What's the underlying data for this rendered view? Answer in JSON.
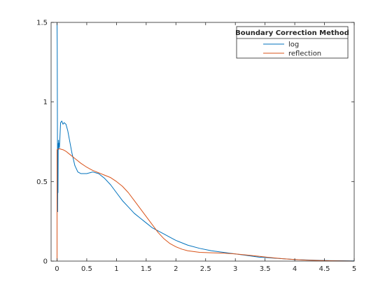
{
  "chart_data": {
    "type": "line",
    "title": "",
    "xlabel": "",
    "ylabel": "",
    "xlim": [
      -0.1,
      5
    ],
    "ylim": [
      0,
      1.5
    ],
    "xticks": [
      0,
      0.5,
      1,
      1.5,
      2,
      2.5,
      3,
      3.5,
      4,
      4.5,
      5
    ],
    "xtick_labels": [
      "0",
      "0.5",
      "1",
      "1.5",
      "2",
      "2.5",
      "3",
      "3.5",
      "4",
      "4.5",
      "5"
    ],
    "yticks": [
      0,
      0.5,
      1,
      1.5
    ],
    "ytick_labels": [
      "0",
      "0.5",
      "1",
      "1.5"
    ],
    "grid": false,
    "legend": {
      "title": "Boundary Correction Method",
      "location": "top-right"
    },
    "series": [
      {
        "name": "log",
        "color": "#0072BD",
        "x": [
          0.0,
          0.003,
          0.006,
          0.01,
          0.013,
          0.016,
          0.02,
          0.023,
          0.026,
          0.03,
          0.035,
          0.04,
          0.05,
          0.06,
          0.08,
          0.1,
          0.12,
          0.15,
          0.18,
          0.2,
          0.25,
          0.3,
          0.35,
          0.4,
          0.45,
          0.5,
          0.55,
          0.6,
          0.7,
          0.8,
          0.9,
          1.0,
          1.1,
          1.2,
          1.3,
          1.4,
          1.5,
          1.6,
          1.7,
          1.8,
          1.9,
          2.0,
          2.2,
          2.4,
          2.6,
          2.8,
          3.0,
          3.2,
          3.4,
          3.6,
          3.8,
          4.0,
          4.2,
          4.4,
          4.6,
          4.8,
          5.0
        ],
        "y": [
          1.5,
          1.35,
          0.9,
          0.31,
          0.6,
          0.43,
          0.74,
          0.7,
          0.76,
          0.72,
          0.74,
          0.71,
          0.79,
          0.87,
          0.88,
          0.86,
          0.87,
          0.86,
          0.82,
          0.78,
          0.68,
          0.6,
          0.56,
          0.55,
          0.55,
          0.55,
          0.555,
          0.56,
          0.55,
          0.52,
          0.48,
          0.43,
          0.38,
          0.34,
          0.3,
          0.27,
          0.24,
          0.21,
          0.19,
          0.17,
          0.15,
          0.13,
          0.1,
          0.08,
          0.065,
          0.055,
          0.045,
          0.035,
          0.025,
          0.02,
          0.015,
          0.01,
          0.007,
          0.005,
          0.003,
          0.002,
          0.001
        ]
      },
      {
        "name": "reflection",
        "color": "#D95319",
        "x": [
          0.0,
          0.0,
          0.02,
          0.05,
          0.1,
          0.15,
          0.2,
          0.3,
          0.4,
          0.5,
          0.6,
          0.7,
          0.8,
          0.9,
          1.0,
          1.1,
          1.2,
          1.3,
          1.4,
          1.5,
          1.6,
          1.7,
          1.8,
          1.9,
          2.0,
          2.1,
          2.2,
          2.4,
          2.6,
          2.8,
          3.0,
          3.2,
          3.4,
          3.6,
          3.8,
          4.0,
          4.2,
          4.4,
          4.6,
          4.8,
          5.0
        ],
        "y": [
          0.0,
          0.7,
          0.705,
          0.705,
          0.7,
          0.69,
          0.675,
          0.645,
          0.615,
          0.59,
          0.57,
          0.555,
          0.54,
          0.525,
          0.5,
          0.47,
          0.43,
          0.38,
          0.33,
          0.28,
          0.23,
          0.18,
          0.14,
          0.11,
          0.09,
          0.075,
          0.065,
          0.055,
          0.052,
          0.05,
          0.045,
          0.038,
          0.03,
          0.022,
          0.015,
          0.01,
          0.006,
          0.004,
          0.002,
          0.001,
          0.0
        ]
      }
    ]
  }
}
